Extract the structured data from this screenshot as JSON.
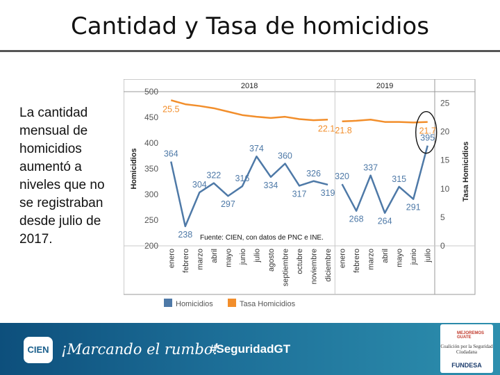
{
  "page": {
    "title": "Cantidad y Tasa de homicidios",
    "side_text": "La cantidad mensual de homicidios aumentó a niveles que no se registraban desde julio de 2017."
  },
  "footer": {
    "logo": "CIEN",
    "slogan": "¡Marcando el rumbo!",
    "hashtag": "#SeguridadGT",
    "partner_top": "MEJOREMOS GUATE",
    "partner_middle": "Coalición por la Seguridad Ciudadana",
    "partner_bottom": "FUNDESA"
  },
  "chart_data": {
    "type": "line",
    "groups": [
      {
        "label": "2018",
        "count": 12
      },
      {
        "label": "2019",
        "count": 7
      }
    ],
    "categories": [
      "enero",
      "febrero",
      "marzo",
      "abril",
      "mayo",
      "junio",
      "julio",
      "agosto",
      "septiembre",
      "octubre",
      "noviembre",
      "diciembre",
      "enero",
      "febrero",
      "marzo",
      "abril",
      "mayo",
      "junio",
      "julio"
    ],
    "series": [
      {
        "name": "Homicidios",
        "axis": "left",
        "color": "#4e79a7",
        "values": [
          364,
          238,
          304,
          322,
          297,
          316,
          374,
          334,
          360,
          317,
          326,
          319,
          320,
          268,
          337,
          264,
          315,
          291,
          395
        ]
      },
      {
        "name": "Tasa Homicidios",
        "axis": "right",
        "color": "#f28e2b",
        "values": [
          25.5,
          24.8,
          24.5,
          24.1,
          23.5,
          22.9,
          22.6,
          22.4,
          22.6,
          22.2,
          22.0,
          22.1,
          21.8,
          21.9,
          22.1,
          21.7,
          21.7,
          21.6,
          21.7
        ]
      }
    ],
    "labels_shown": {
      "Homicidios": [
        0,
        1,
        2,
        3,
        4,
        5,
        6,
        7,
        8,
        9,
        10,
        11,
        12,
        13,
        14,
        15,
        16,
        17,
        18
      ],
      "Tasa Homicidios": [
        0,
        11,
        12,
        18
      ]
    },
    "ylabel": "Homicidios",
    "y2label": "Tasa Homicidios",
    "ylim": [
      200,
      500
    ],
    "yticks": [
      200,
      250,
      300,
      350,
      400,
      450,
      500
    ],
    "y2lim": [
      0,
      27
    ],
    "y2ticks": [
      0,
      5,
      10,
      15,
      20,
      25
    ],
    "source_note": "Fuente: CIEN, con datos de PNC e INE.",
    "legend": [
      "Homicidios",
      "Tasa Homicidios"
    ],
    "highlight": {
      "index": 18,
      "shape": "ellipse"
    }
  }
}
